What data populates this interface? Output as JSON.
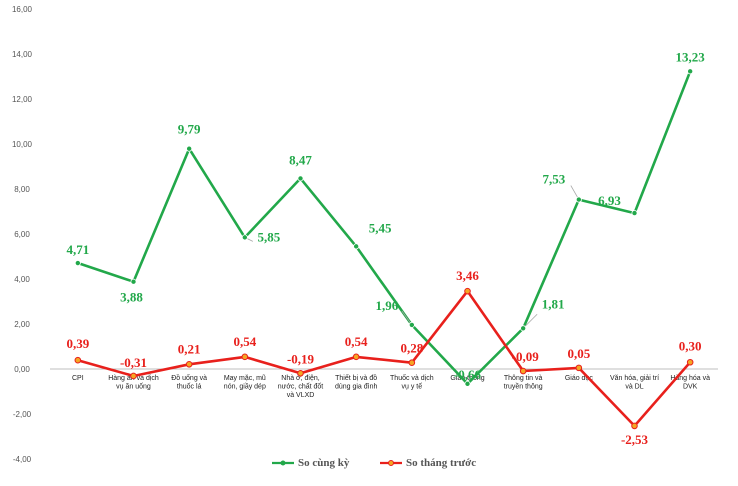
{
  "chart_data": {
    "type": "line",
    "title": "",
    "xlabel": "",
    "ylabel": "",
    "ylim": [
      -4,
      16
    ],
    "yticks": [
      "16,00",
      "14,00",
      "12,00",
      "10,00",
      "8,00",
      "6,00",
      "4,00",
      "2,00",
      "0,00",
      "-2,00",
      "-4,00"
    ],
    "grid": false,
    "legend_position": "bottom",
    "categories": [
      [
        "CPI"
      ],
      [
        "Hàng ăn và dịch",
        "vụ ăn uống"
      ],
      [
        "Đồ uống và",
        "thuốc lá"
      ],
      [
        "May mặc, mũ",
        "nón, giầy dép"
      ],
      [
        "Nhà ở, điện,",
        "nước, chất đốt",
        "và VLXD"
      ],
      [
        "Thiết bị và đồ",
        "dùng gia đình"
      ],
      [
        "Thuốc và dịch",
        "vụ y tế"
      ],
      [
        "Giao thông"
      ],
      [
        "Thông tin và",
        "truyền thông"
      ],
      [
        "Giáo dục"
      ],
      [
        "Văn hóa, giải trí",
        "và DL"
      ],
      [
        "Hàng hóa và",
        "DVK"
      ]
    ],
    "series": [
      {
        "name": "So cùng kỳ",
        "color": "#22a84a",
        "values": [
          4.71,
          3.88,
          9.79,
          5.85,
          8.47,
          5.45,
          1.96,
          -0.66,
          1.81,
          7.53,
          6.93,
          13.23
        ],
        "labels": [
          "4,71",
          "3,88",
          "9,79",
          "5,85",
          "8,47",
          "5,45",
          "1,96",
          "-0,66",
          "1,81",
          "7,53",
          "6,93",
          "13,23"
        ]
      },
      {
        "name": "So tháng trước",
        "color": "#e8201c",
        "values": [
          0.39,
          -0.31,
          0.21,
          0.54,
          -0.19,
          0.54,
          0.28,
          3.46,
          -0.09,
          0.05,
          -2.53,
          0.3
        ],
        "labels": [
          "0,39",
          "-0,31",
          "0,21",
          "0,54",
          "-0,19",
          "0,54",
          "0,28",
          "3,46",
          "-0,09",
          "0,05",
          "-2,53",
          "0,30"
        ]
      }
    ]
  }
}
